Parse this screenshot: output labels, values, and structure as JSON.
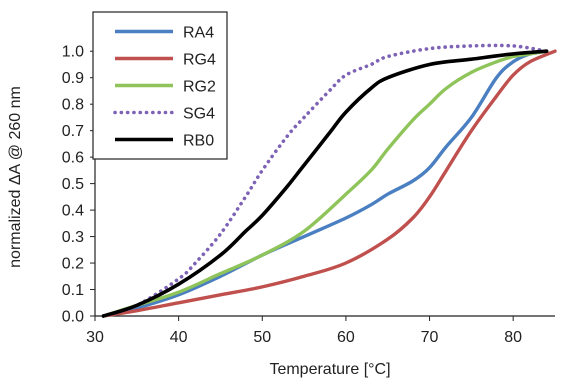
{
  "chart_data": {
    "type": "line",
    "title": "",
    "xlabel": "Temperature [°C]",
    "ylabel": "normalized ΔA @ 260 nm",
    "xlim": [
      30,
      85
    ],
    "ylim": [
      0,
      1.05
    ],
    "xticks": [
      30,
      40,
      50,
      60,
      70,
      80
    ],
    "yticks": [
      0.0,
      0.1,
      0.2,
      0.3,
      0.4,
      0.5,
      0.6,
      0.7,
      0.8,
      0.9,
      1.0
    ],
    "xtick_labels": [
      "30",
      "40",
      "50",
      "60",
      "70",
      "80"
    ],
    "ytick_labels": [
      "0.0",
      "0.1",
      "0.2",
      "0.3",
      "0.4",
      "0.5",
      "0.6",
      "0.7",
      "0.8",
      "0.9",
      "1.0"
    ],
    "grid": false,
    "legend_position": "top-left",
    "series": [
      {
        "name": "RA4",
        "color": "#4a7fc1",
        "style": "solid",
        "x": [
          31,
          35,
          40,
          45,
          50,
          55,
          60,
          63,
          65,
          68,
          70,
          72,
          75,
          78,
          80,
          82,
          84
        ],
        "y": [
          0.0,
          0.03,
          0.08,
          0.15,
          0.23,
          0.3,
          0.37,
          0.42,
          0.46,
          0.51,
          0.56,
          0.64,
          0.75,
          0.9,
          0.96,
          0.99,
          1.0
        ]
      },
      {
        "name": "RG4",
        "color": "#c0504d",
        "style": "solid",
        "x": [
          31,
          35,
          40,
          45,
          50,
          55,
          60,
          65,
          68,
          70,
          72,
          75,
          78,
          80,
          82,
          85
        ],
        "y": [
          0.0,
          0.02,
          0.05,
          0.08,
          0.11,
          0.15,
          0.2,
          0.29,
          0.37,
          0.45,
          0.55,
          0.7,
          0.83,
          0.91,
          0.96,
          1.0
        ]
      },
      {
        "name": "RG2",
        "color": "#8fc45a",
        "style": "solid",
        "x": [
          31,
          35,
          40,
          45,
          50,
          55,
          60,
          63,
          65,
          68,
          70,
          72,
          75,
          78,
          80,
          82,
          84
        ],
        "y": [
          0.0,
          0.04,
          0.09,
          0.16,
          0.23,
          0.32,
          0.46,
          0.55,
          0.63,
          0.74,
          0.8,
          0.86,
          0.92,
          0.96,
          0.98,
          0.99,
          1.0
        ]
      },
      {
        "name": "SG4",
        "color": "#7d62b5",
        "style": "dotted",
        "x": [
          31,
          35,
          40,
          42,
          45,
          48,
          50,
          53,
          55,
          58,
          60,
          63,
          65,
          70,
          75,
          80,
          84
        ],
        "y": [
          0.0,
          0.04,
          0.14,
          0.2,
          0.31,
          0.45,
          0.55,
          0.68,
          0.75,
          0.85,
          0.91,
          0.95,
          0.98,
          1.01,
          1.02,
          1.02,
          1.0
        ]
      },
      {
        "name": "RB0",
        "color": "#000000",
        "style": "solid",
        "x": [
          31,
          35,
          40,
          45,
          48,
          50,
          53,
          55,
          58,
          60,
          63,
          65,
          70,
          75,
          80,
          84
        ],
        "y": [
          0.0,
          0.04,
          0.12,
          0.23,
          0.32,
          0.38,
          0.49,
          0.57,
          0.69,
          0.77,
          0.86,
          0.9,
          0.95,
          0.97,
          0.99,
          1.0
        ]
      }
    ]
  }
}
